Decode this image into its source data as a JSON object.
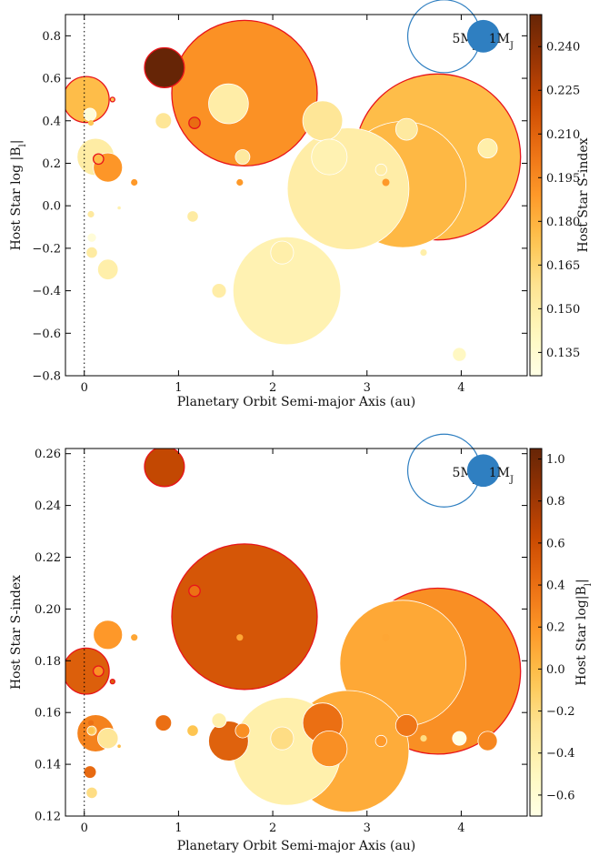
{
  "chart_data": [
    {
      "type": "scatter",
      "xlabel": "Planetary Orbit Semi-major Axis (au)",
      "ylabel": "Host Star log |B",
      "ylabel_sub": "l",
      "ylabel_end": "|",
      "colorbar_label": "Host Star S-index",
      "xlim": [
        -0.2,
        4.7
      ],
      "ylim": [
        -0.8,
        0.9
      ],
      "xticks": [
        "0",
        "1",
        "2",
        "3",
        "4"
      ],
      "yticks": [
        "−0.8",
        "−0.6",
        "−0.4",
        "−0.2",
        "0.0",
        "0.2",
        "0.4",
        "0.6",
        "0.8"
      ],
      "colorbar_range": [
        0.127,
        0.251
      ],
      "colorbar_ticks": [
        "0.135",
        "0.150",
        "0.165",
        "0.180",
        "0.195",
        "0.210",
        "0.225",
        "0.240"
      ],
      "colormap": "YlOrBr",
      "reference_line_x": 0,
      "legend": {
        "large": {
          "base": "5M",
          "sub": "J",
          "mass": 5
        },
        "small": {
          "base": "1M",
          "sub": "J",
          "mass": 1
        },
        "color": "#2f7fc1"
      },
      "points": [
        {
          "x": 1.7,
          "y": 0.53,
          "c": 0.192,
          "m": 20,
          "ring": "red"
        },
        {
          "x": 3.75,
          "y": 0.23,
          "c": 0.176,
          "m": 26,
          "ring": "red"
        },
        {
          "x": 3.38,
          "y": 0.1,
          "c": 0.178,
          "m": 15,
          "ring": "white"
        },
        {
          "x": 2.8,
          "y": 0.08,
          "c": 0.15,
          "m": 14,
          "ring": "white"
        },
        {
          "x": 2.15,
          "y": -0.4,
          "c": 0.146,
          "m": 11,
          "ring": "white"
        },
        {
          "x": 0.85,
          "y": 0.65,
          "c": 0.254,
          "m": 1.5,
          "ring": "red"
        },
        {
          "x": 0.02,
          "y": 0.5,
          "c": 0.176,
          "m": 2,
          "ring": "red"
        },
        {
          "x": 1.53,
          "y": 0.48,
          "c": 0.15,
          "m": 1.5,
          "ring": "white"
        },
        {
          "x": 2.53,
          "y": 0.4,
          "c": 0.156,
          "m": 1.5,
          "ring": "white"
        },
        {
          "x": 2.6,
          "y": 0.23,
          "c": 0.146,
          "m": 1.2,
          "ring": "white"
        },
        {
          "x": 0.12,
          "y": 0.23,
          "c": 0.151,
          "m": 1.3,
          "ring": "white"
        },
        {
          "x": 0.25,
          "y": 0.18,
          "c": 0.19,
          "m": 0.8,
          "ring": "white"
        },
        {
          "x": 2.1,
          "y": -0.22,
          "c": 0.149,
          "m": 0.5,
          "ring": "white"
        },
        {
          "x": 3.42,
          "y": 0.36,
          "c": 0.153,
          "m": 0.45,
          "ring": "white"
        },
        {
          "x": 4.28,
          "y": 0.27,
          "c": 0.149,
          "m": 0.35,
          "ring": "white"
        },
        {
          "x": 0.25,
          "y": -0.3,
          "c": 0.149,
          "m": 0.4,
          "ring": "white"
        },
        {
          "x": 0.84,
          "y": 0.4,
          "c": 0.156,
          "m": 0.25,
          "ring": "white"
        },
        {
          "x": 1.68,
          "y": 0.23,
          "c": 0.153,
          "m": 0.2,
          "ring": "white"
        },
        {
          "x": 1.43,
          "y": -0.4,
          "c": 0.15,
          "m": 0.2,
          "ring": "white"
        },
        {
          "x": 3.98,
          "y": -0.7,
          "c": 0.14,
          "m": 0.18,
          "ring": "white"
        },
        {
          "x": 0.06,
          "y": 0.43,
          "c": 0.131,
          "m": 0.15,
          "ring": "white"
        },
        {
          "x": 1.15,
          "y": -0.05,
          "c": 0.152,
          "m": 0.12,
          "ring": "white"
        },
        {
          "x": 0.08,
          "y": -0.22,
          "c": 0.152,
          "m": 0.12,
          "ring": "white"
        },
        {
          "x": 0.08,
          "y": -0.15,
          "c": 0.132,
          "m": 0.08,
          "ring": "white"
        },
        {
          "x": 3.15,
          "y": 0.17,
          "c": 0.15,
          "m": 0.12,
          "ring": "white"
        },
        {
          "x": 1.17,
          "y": 0.39,
          "c": 0.206,
          "m": 0.12,
          "ring": "red"
        },
        {
          "x": 0.15,
          "y": 0.22,
          "c": 0.176,
          "m": 0.1,
          "ring": "red"
        },
        {
          "x": 0.53,
          "y": 0.11,
          "c": 0.189,
          "m": 0.04,
          "ring": "none"
        },
        {
          "x": 1.65,
          "y": 0.11,
          "c": 0.189,
          "m": 0.04,
          "ring": "none"
        },
        {
          "x": 3.2,
          "y": 0.11,
          "c": 0.189,
          "m": 0.05,
          "ring": "none"
        },
        {
          "x": 0.07,
          "y": -0.04,
          "c": 0.153,
          "m": 0.04,
          "ring": "none"
        },
        {
          "x": 3.6,
          "y": -0.22,
          "c": 0.149,
          "m": 0.04,
          "ring": "none"
        },
        {
          "x": 0.07,
          "y": 0.39,
          "c": 0.172,
          "m": 0.03,
          "ring": "none"
        },
        {
          "x": 0.3,
          "y": 0.5,
          "c": 0.172,
          "m": 0.02,
          "ring": "red"
        },
        {
          "x": 0.37,
          "y": -0.01,
          "c": 0.147,
          "m": 0.01,
          "ring": "none"
        }
      ]
    },
    {
      "type": "scatter",
      "xlabel": "Planetary Orbit Semi-major Axis (au)",
      "ylabel": "Host Star S-index",
      "colorbar_label": "Host Star log|B",
      "colorbar_label_sub": "l",
      "colorbar_label_end": "|",
      "xlim": [
        -0.2,
        4.7
      ],
      "ylim": [
        0.12,
        0.262
      ],
      "xticks": [
        "0",
        "1",
        "2",
        "3",
        "4"
      ],
      "yticks": [
        "0.12",
        "0.14",
        "0.16",
        "0.18",
        "0.20",
        "0.22",
        "0.24",
        "0.26"
      ],
      "colorbar_range": [
        -0.7,
        1.05
      ],
      "colorbar_ticks": [
        "−0.6",
        "−0.4",
        "−0.2",
        "0.0",
        "0.2",
        "0.4",
        "0.6",
        "0.8",
        "1.0"
      ],
      "colormap": "YlOrBr",
      "reference_line_x": 0,
      "legend": {
        "large": {
          "base": "5M",
          "sub": "J",
          "mass": 5
        },
        "small": {
          "base": "1M",
          "sub": "J",
          "mass": 1
        },
        "color": "#2f7fc1"
      },
      "points": [
        {
          "x": 1.7,
          "y": 0.197,
          "c": 0.55,
          "m": 20,
          "ring": "red"
        },
        {
          "x": 3.75,
          "y": 0.176,
          "c": 0.23,
          "m": 26,
          "ring": "red"
        },
        {
          "x": 3.38,
          "y": 0.179,
          "c": 0.1,
          "m": 15,
          "ring": "white"
        },
        {
          "x": 2.8,
          "y": 0.145,
          "c": 0.08,
          "m": 14,
          "ring": "white"
        },
        {
          "x": 2.15,
          "y": 0.145,
          "c": -0.4,
          "m": 11,
          "ring": "white"
        },
        {
          "x": 0.85,
          "y": 0.255,
          "c": 0.65,
          "m": 1.5,
          "ring": "red"
        },
        {
          "x": 0.02,
          "y": 0.176,
          "c": 0.5,
          "m": 2,
          "ring": "red"
        },
        {
          "x": 1.53,
          "y": 0.149,
          "c": 0.48,
          "m": 1.5,
          "ring": "white"
        },
        {
          "x": 2.53,
          "y": 0.156,
          "c": 0.4,
          "m": 1.5,
          "ring": "white"
        },
        {
          "x": 2.6,
          "y": 0.146,
          "c": 0.23,
          "m": 1.2,
          "ring": "white"
        },
        {
          "x": 0.12,
          "y": 0.152,
          "c": 0.3,
          "m": 1.3,
          "ring": "white"
        },
        {
          "x": 0.25,
          "y": 0.19,
          "c": 0.18,
          "m": 0.8,
          "ring": "white"
        },
        {
          "x": 2.1,
          "y": 0.15,
          "c": -0.22,
          "m": 0.5,
          "ring": "white"
        },
        {
          "x": 3.42,
          "y": 0.155,
          "c": 0.36,
          "m": 0.45,
          "ring": "white"
        },
        {
          "x": 4.28,
          "y": 0.149,
          "c": 0.27,
          "m": 0.35,
          "ring": "white"
        },
        {
          "x": 0.25,
          "y": 0.15,
          "c": -0.3,
          "m": 0.4,
          "ring": "white"
        },
        {
          "x": 0.84,
          "y": 0.156,
          "c": 0.4,
          "m": 0.25,
          "ring": "white"
        },
        {
          "x": 1.68,
          "y": 0.153,
          "c": 0.23,
          "m": 0.2,
          "ring": "white"
        },
        {
          "x": 1.43,
          "y": 0.157,
          "c": -0.4,
          "m": 0.2,
          "ring": "white"
        },
        {
          "x": 3.98,
          "y": 0.15,
          "c": -0.7,
          "m": 0.18,
          "ring": "white"
        },
        {
          "x": 0.06,
          "y": 0.137,
          "c": 0.43,
          "m": 0.15,
          "ring": "white"
        },
        {
          "x": 1.15,
          "y": 0.153,
          "c": -0.05,
          "m": 0.12,
          "ring": "white"
        },
        {
          "x": 0.08,
          "y": 0.129,
          "c": -0.22,
          "m": 0.12,
          "ring": "white"
        },
        {
          "x": 0.08,
          "y": 0.153,
          "c": -0.15,
          "m": 0.08,
          "ring": "white"
        },
        {
          "x": 3.15,
          "y": 0.149,
          "c": 0.17,
          "m": 0.12,
          "ring": "white"
        },
        {
          "x": 1.17,
          "y": 0.207,
          "c": 0.39,
          "m": 0.12,
          "ring": "red"
        },
        {
          "x": 0.15,
          "y": 0.176,
          "c": 0.22,
          "m": 0.1,
          "ring": "red"
        },
        {
          "x": 0.53,
          "y": 0.189,
          "c": 0.11,
          "m": 0.04,
          "ring": "none"
        },
        {
          "x": 1.65,
          "y": 0.189,
          "c": 0.11,
          "m": 0.04,
          "ring": "none"
        },
        {
          "x": 3.2,
          "y": 0.189,
          "c": 0.11,
          "m": 0.05,
          "ring": "none"
        },
        {
          "x": 0.07,
          "y": 0.153,
          "c": -0.04,
          "m": 0.04,
          "ring": "none"
        },
        {
          "x": 3.6,
          "y": 0.15,
          "c": -0.22,
          "m": 0.04,
          "ring": "none"
        },
        {
          "x": 0.07,
          "y": 0.156,
          "c": 0.39,
          "m": 0.03,
          "ring": "none"
        },
        {
          "x": 0.3,
          "y": 0.172,
          "c": 0.5,
          "m": 0.02,
          "ring": "red"
        },
        {
          "x": 0.37,
          "y": 0.147,
          "c": -0.01,
          "m": 0.01,
          "ring": "none"
        }
      ]
    }
  ]
}
